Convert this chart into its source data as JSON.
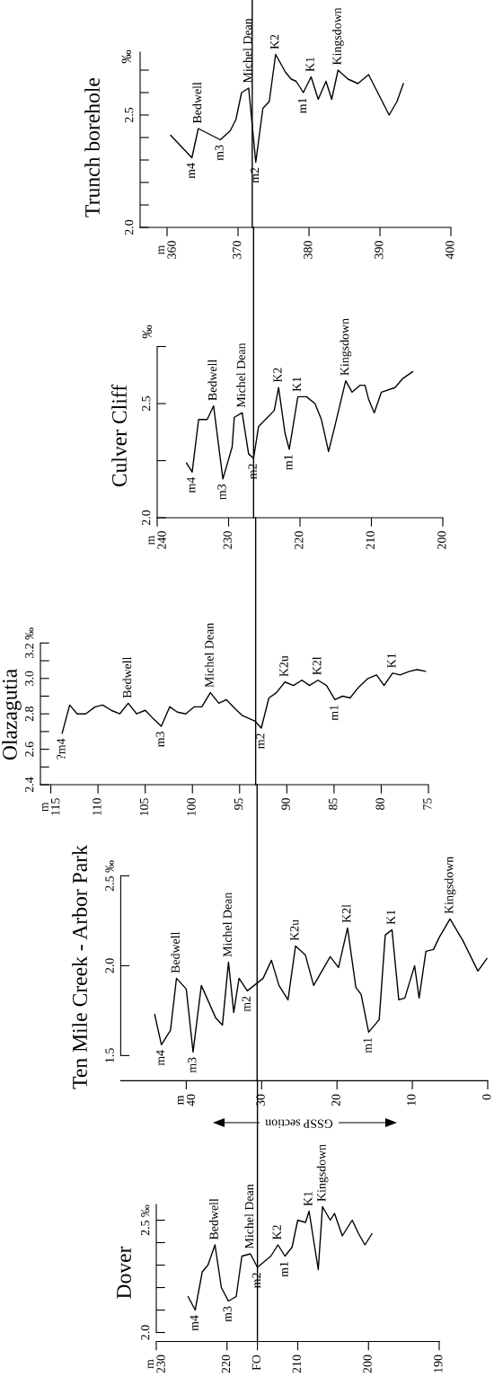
{
  "chart_data": [
    {
      "type": "line",
      "title": "Trunch borehole",
      "ylabel": "‰",
      "color": "#000000",
      "x": [
        360.5,
        363.5,
        364.4,
        367.5,
        368.9,
        369.7,
        370.5,
        371.5,
        372.5,
        373.5,
        374.4,
        375.3,
        376.7,
        377.5,
        378.2,
        379.2,
        380.3,
        381.3,
        382.4,
        383.2,
        384.1,
        385.5,
        386.9,
        388.4,
        391.3,
        392.4,
        393.3
      ],
      "values": [
        2.41,
        2.31,
        2.44,
        2.39,
        2.43,
        2.48,
        2.6,
        2.62,
        2.29,
        2.53,
        2.56,
        2.77,
        2.69,
        2.66,
        2.65,
        2.6,
        2.67,
        2.57,
        2.65,
        2.57,
        2.7,
        2.66,
        2.64,
        2.68,
        2.5,
        2.56,
        2.64
      ],
      "xlim": [
        356.2,
        400
      ],
      "xticks": [
        {
          "value": 360,
          "label": "m\n360"
        },
        370,
        380,
        390,
        400
      ],
      "ylim": [
        2.0,
        2.78
      ],
      "yticks": [
        {
          "value": 2.0,
          "label": "2.0"
        },
        {
          "value": 2.1,
          "label": null
        },
        {
          "value": 2.2,
          "label": null
        },
        {
          "value": 2.3,
          "label": null
        },
        {
          "value": 2.4,
          "label": null
        },
        2.5,
        {
          "value": 2.6,
          "label": null
        },
        {
          "value": 2.7,
          "label": null
        }
      ],
      "ref_lines": [
        {
          "axis": "x",
          "value": 372.0,
          "color": "#000000"
        }
      ],
      "annotations": [
        {
          "text": "m4",
          "x": 363.5,
          "y": 2.31
        },
        {
          "text": "Bedwell",
          "x": 364.4,
          "y": 2.44
        },
        {
          "text": "m3",
          "x": 367.5,
          "y": 2.39
        },
        {
          "text": "Michel Dean",
          "x": 371.5,
          "y": 2.62
        },
        {
          "text": "m2",
          "x": 372.5,
          "y": 2.29
        },
        {
          "text": "K2",
          "x": 375.3,
          "y": 2.77
        },
        {
          "text": "m1",
          "x": 379.2,
          "y": 2.6
        },
        {
          "text": "K1",
          "x": 380.3,
          "y": 2.67
        },
        {
          "text": "Kingsdown",
          "x": 384.1,
          "y": 2.7
        }
      ]
    },
    {
      "type": "line",
      "title": "Culver Cliff",
      "ylabel": "‰",
      "color": "#000000",
      "x": [
        235.9,
        235.1,
        234.2,
        233.0,
        232.1,
        230.8,
        229.5,
        229.2,
        228.1,
        227.2,
        226.5,
        225.8,
        223.6,
        223.0,
        222.1,
        221.5,
        220.3,
        219.1,
        217.9,
        217.0,
        216.0,
        215.2,
        213.6,
        212.7,
        211.6,
        210.9,
        210.4,
        209.6,
        208.6,
        206.7,
        205.6,
        204.2
      ],
      "values": [
        2.24,
        2.2,
        2.43,
        2.43,
        2.49,
        2.17,
        2.31,
        2.44,
        2.46,
        2.28,
        2.26,
        2.4,
        2.47,
        2.57,
        2.37,
        2.3,
        2.53,
        2.53,
        2.5,
        2.43,
        2.29,
        2.39,
        2.6,
        2.55,
        2.58,
        2.58,
        2.52,
        2.46,
        2.55,
        2.57,
        2.61,
        2.64
      ],
      "xlim": [
        240,
        200
      ],
      "xticks": [
        {
          "value": 240,
          "label": "m\n240"
        },
        230,
        220,
        210,
        200
      ],
      "ylim": [
        2.0,
        2.75
      ],
      "yticks": [
        {
          "value": 2.0,
          "label": "2.0"
        },
        {
          "value": 2.25,
          "label": null
        },
        2.5,
        {
          "value": 2.75,
          "label": null
        }
      ],
      "ref_lines": [
        {
          "axis": "x",
          "value": 226.5,
          "color": "#000000"
        }
      ],
      "annotations": [
        {
          "text": "m4",
          "x": 235.1,
          "y": 2.2
        },
        {
          "text": "Bedwell",
          "x": 232.1,
          "y": 2.49
        },
        {
          "text": "m3",
          "x": 230.8,
          "y": 2.17
        },
        {
          "text": "Michel Dean",
          "x": 228.1,
          "y": 2.46
        },
        {
          "text": "m2",
          "x": 226.5,
          "y": 2.26
        },
        {
          "text": "K2",
          "x": 223.0,
          "y": 2.57
        },
        {
          "text": "m1",
          "x": 221.5,
          "y": 2.3
        },
        {
          "text": "K1",
          "x": 220.3,
          "y": 2.53
        },
        {
          "text": "Kingsdown",
          "x": 213.6,
          "y": 2.6
        }
      ]
    },
    {
      "type": "line",
      "title": "Olazagutia",
      "color": "#000000",
      "x": [
        113.8,
        113.0,
        112.2,
        111.3,
        110.3,
        109.5,
        108.6,
        107.7,
        106.8,
        105.9,
        105.0,
        104.1,
        103.3,
        102.4,
        101.6,
        100.7,
        99.8,
        99.0,
        98.1,
        97.2,
        96.4,
        95.5,
        94.7,
        93.4,
        92.7,
        91.9,
        91.1,
        90.2,
        89.3,
        88.4,
        87.6,
        86.7,
        85.8,
        84.9,
        84.1,
        83.3,
        82.4,
        81.4,
        80.5,
        79.7,
        78.8,
        78.0,
        77.0,
        76.2,
        75.3
      ],
      "values": [
        2.69,
        2.85,
        2.8,
        2.8,
        2.84,
        2.85,
        2.82,
        2.8,
        2.86,
        2.8,
        2.82,
        2.77,
        2.73,
        2.84,
        2.81,
        2.8,
        2.84,
        2.84,
        2.92,
        2.86,
        2.88,
        2.83,
        2.79,
        2.76,
        2.72,
        2.89,
        2.92,
        2.98,
        2.96,
        2.99,
        2.96,
        2.99,
        2.96,
        2.88,
        2.9,
        2.89,
        2.95,
        3.0,
        3.02,
        2.96,
        3.03,
        3.02,
        3.04,
        3.05,
        3.04
      ],
      "xlim": [
        116.1,
        75
      ],
      "xticks": [
        {
          "value": 115,
          "label": "m\n115"
        },
        110,
        105,
        100,
        95,
        90,
        85,
        80,
        75
      ],
      "ylim": [
        2.4,
        3.2
      ],
      "yticks": [
        2.4,
        {
          "value": 2.5,
          "label": null
        },
        2.6,
        {
          "value": 2.7,
          "label": null
        },
        2.8,
        {
          "value": 2.9,
          "label": null
        },
        {
          "value": 3.0,
          "label": "3.0"
        },
        {
          "value": 3.1,
          "label": null
        },
        {
          "value": 3.2,
          "label": "3.2 ‰"
        }
      ],
      "ref_lines": [
        {
          "axis": "x",
          "value": 93.3,
          "color": "#000000"
        }
      ],
      "annotations": [
        {
          "text": "?m4",
          "x": 113.8,
          "y": 2.69
        },
        {
          "text": "Bedwell",
          "x": 106.8,
          "y": 2.86
        },
        {
          "text": "m3",
          "x": 103.3,
          "y": 2.73
        },
        {
          "text": "Michel Dean",
          "x": 98.1,
          "y": 2.92
        },
        {
          "text": "m2",
          "x": 92.7,
          "y": 2.72
        },
        {
          "text": "K2u",
          "x": 90.2,
          "y": 2.98
        },
        {
          "text": "K2l",
          "x": 86.7,
          "y": 2.99
        },
        {
          "text": "m1",
          "x": 84.9,
          "y": 2.88
        },
        {
          "text": "K1",
          "x": 78.8,
          "y": 3.03
        }
      ]
    },
    {
      "type": "line",
      "title": "Ten Mile Creek - Arbor Park",
      "color": "#000000",
      "x": [
        44.2,
        43.3,
        42.1,
        41.3,
        40.0,
        39.1,
        38.0,
        36.1,
        35.2,
        34.4,
        33.7,
        33.0,
        31.9,
        29.8,
        28.7,
        27.7,
        26.5,
        25.5,
        24.2,
        23.1,
        20.9,
        19.8,
        18.6,
        17.5,
        16.8,
        15.8,
        14.4,
        13.6,
        12.7,
        11.8,
        11.0,
        9.7,
        9.1,
        8.2,
        7.2,
        6.4,
        5.0,
        3.3,
        1.3,
        0.1
      ],
      "values": [
        1.73,
        1.56,
        1.64,
        1.93,
        1.87,
        1.52,
        1.89,
        1.71,
        1.67,
        2.02,
        1.74,
        1.93,
        1.86,
        1.93,
        2.03,
        1.89,
        1.81,
        2.11,
        2.06,
        1.89,
        2.05,
        1.99,
        2.21,
        1.88,
        1.84,
        1.63,
        1.7,
        2.17,
        2.2,
        1.81,
        1.82,
        2.0,
        1.82,
        2.08,
        2.09,
        2.16,
        2.26,
        2.14,
        1.97,
        2.04
      ],
      "xlim": [
        48.7,
        0
      ],
      "xticks": [
        {
          "value": 40,
          "label": "m\n40"
        },
        30,
        20,
        10,
        0
      ],
      "ylim": [
        1.36,
        2.5
      ],
      "yticks": [
        1.5,
        {
          "value": 2.0,
          "label": "2.0"
        },
        {
          "value": 2.5,
          "label": "2.5 ‰"
        }
      ],
      "ref_lines": [
        {
          "axis": "x",
          "value": 30.6,
          "color": "#000000"
        }
      ],
      "annotations": [
        "GSSP section",
        {
          "text": "m4",
          "x": 43.3,
          "y": 1.56
        },
        {
          "text": "Bedwell",
          "x": 41.3,
          "y": 1.93
        },
        {
          "text": "m3",
          "x": 39.1,
          "y": 1.52
        },
        {
          "text": "Michel Dean",
          "x": 34.4,
          "y": 2.02
        },
        {
          "text": "m2",
          "x": 31.9,
          "y": 1.86
        },
        {
          "text": "K2u",
          "x": 25.5,
          "y": 2.11
        },
        {
          "text": "K2l",
          "x": 18.6,
          "y": 2.21
        },
        {
          "text": "m1",
          "x": 15.8,
          "y": 1.63
        },
        {
          "text": "K1",
          "x": 12.7,
          "y": 2.2
        },
        {
          "text": "Kingsdown",
          "x": 5.0,
          "y": 2.26
        }
      ]
    },
    {
      "type": "line",
      "title": "Dover",
      "color": "#000000",
      "x": [
        225.5,
        224.5,
        223.5,
        222.7,
        221.7,
        220.8,
        219.8,
        218.7,
        217.9,
        216.7,
        215.7,
        213.8,
        212.8,
        211.8,
        210.8,
        210.0,
        208.9,
        208.4,
        207.1,
        206.5,
        205.4,
        204.8,
        203.7,
        202.3,
        201.4,
        200.5,
        199.5
      ],
      "values": [
        2.16,
        2.1,
        2.27,
        2.3,
        2.39,
        2.2,
        2.14,
        2.16,
        2.34,
        2.35,
        2.29,
        2.34,
        2.39,
        2.34,
        2.38,
        2.5,
        2.49,
        2.54,
        2.28,
        2.56,
        2.5,
        2.53,
        2.43,
        2.5,
        2.44,
        2.39,
        2.44
      ],
      "xlim": [
        230,
        190
      ],
      "xticks": [
        {
          "value": 230,
          "label": "m\n230"
        },
        220,
        {
          "value": 215.7,
          "label": "FO"
        },
        210,
        200,
        190
      ],
      "ylim": [
        1.96,
        2.57
      ],
      "yticks": [
        {
          "value": 2.0,
          "label": "2.0"
        },
        {
          "value": 2.1,
          "label": null
        },
        {
          "value": 2.2,
          "label": null
        },
        {
          "value": 2.3,
          "label": null
        },
        {
          "value": 2.4,
          "label": null
        },
        {
          "value": 2.5,
          "label": "2.5 ‰"
        }
      ],
      "ref_lines": [
        {
          "axis": "x",
          "value": 215.7,
          "color": "#000000"
        }
      ],
      "annotations": [
        {
          "text": "m4",
          "x": 224.5,
          "y": 2.1
        },
        {
          "text": "Bedwell",
          "x": 221.7,
          "y": 2.39
        },
        {
          "text": "m3",
          "x": 219.8,
          "y": 2.14
        },
        {
          "text": "Michel Dean",
          "x": 216.7,
          "y": 2.35
        },
        {
          "text": "m2",
          "x": 215.7,
          "y": 2.29
        },
        {
          "text": "K2",
          "x": 212.8,
          "y": 2.39
        },
        {
          "text": "m1",
          "x": 211.8,
          "y": 2.34
        },
        {
          "text": "K1",
          "x": 208.4,
          "y": 2.54
        },
        {
          "text": "Kingsdown",
          "x": 206.5,
          "y": 2.56
        }
      ]
    }
  ]
}
